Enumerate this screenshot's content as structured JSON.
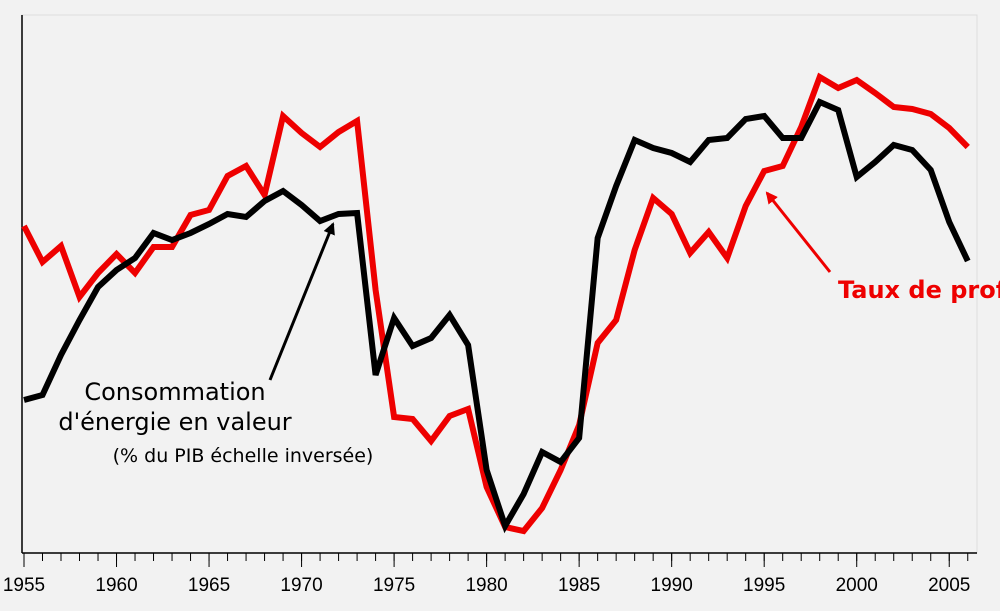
{
  "chart_data": {
    "type": "line",
    "x": [
      1955,
      1956,
      1957,
      1958,
      1959,
      1960,
      1961,
      1962,
      1963,
      1964,
      1965,
      1966,
      1967,
      1968,
      1969,
      1970,
      1971,
      1972,
      1973,
      1974,
      1975,
      1976,
      1977,
      1978,
      1979,
      1980,
      1981,
      1982,
      1983,
      1984,
      1985,
      1986,
      1987,
      1988,
      1989,
      1990,
      1991,
      1992,
      1993,
      1994,
      1995,
      1996,
      1997,
      1998,
      1999,
      2000,
      2001,
      2002,
      2003,
      2004,
      2005,
      2006
    ],
    "series": [
      {
        "name": "Taux de profit",
        "color": "#ee0000",
        "values": [
          327,
          291,
          307,
          256,
          280,
          299,
          280,
          306,
          306,
          338,
          343,
          377,
          387,
          358,
          437,
          420,
          406,
          421,
          432,
          263,
          136,
          134,
          112,
          137,
          144,
          66,
          26,
          22,
          45,
          83,
          128,
          210,
          233,
          303,
          355,
          339,
          300,
          321,
          295,
          347,
          382,
          387,
          426,
          476,
          465,
          473,
          460,
          446,
          444,
          439,
          425,
          406
        ]
      },
      {
        "name": "Consommation d'énergie en valeur",
        "color": "#000000",
        "values": [
          153,
          158,
          198,
          233,
          266,
          283,
          295,
          320,
          313,
          320,
          329,
          339,
          336,
          352,
          362,
          348,
          332,
          339,
          340,
          178,
          235,
          207,
          215,
          238,
          208,
          83,
          27,
          59,
          101,
          91,
          115,
          315,
          367,
          413,
          405,
          400,
          391,
          413,
          415,
          434,
          437,
          415,
          415,
          451,
          443,
          376,
          391,
          408,
          403,
          383,
          331,
          292
        ]
      }
    ],
    "annotations": [
      "Taux de profit",
      "Consommation",
      "d'énergie en valeur",
      "(% du PIB échelle inversée)"
    ],
    "xlim": [
      1955,
      2006.5
    ],
    "xticks": [
      1955,
      1960,
      1965,
      1970,
      1975,
      1980,
      1985,
      1990,
      1995,
      2000,
      2005
    ],
    "ylim": [
      0,
      538
    ]
  }
}
